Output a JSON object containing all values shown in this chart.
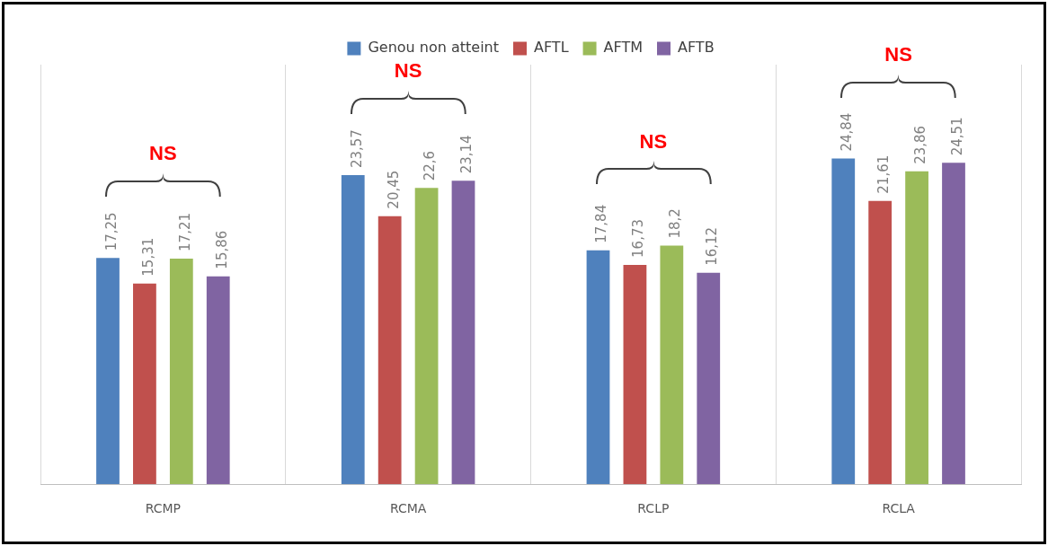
{
  "chart_data": {
    "type": "bar",
    "categories": [
      "RCMP",
      "RCMA",
      "RCLP",
      "RCLA"
    ],
    "series": [
      {
        "name": "Genou non atteint",
        "color": "#4f81bd",
        "values": [
          17.25,
          23.57,
          17.84,
          24.84
        ],
        "value_labels": [
          "17,25",
          "23,57",
          "17,84",
          "24,84"
        ]
      },
      {
        "name": "AFTL",
        "color": "#c0504d",
        "values": [
          15.31,
          20.45,
          16.73,
          21.61
        ],
        "value_labels": [
          "15,31",
          "20,45",
          "16,73",
          "21,61"
        ]
      },
      {
        "name": "AFTM",
        "color": "#9bbb59",
        "values": [
          17.21,
          22.6,
          18.2,
          23.86
        ],
        "value_labels": [
          "17,21",
          "22,6",
          "18,2",
          "23,86"
        ]
      },
      {
        "name": "AFTB",
        "color": "#8064a2",
        "values": [
          15.86,
          23.14,
          16.12,
          24.51
        ],
        "value_labels": [
          "15,86",
          "23,14",
          "16,12",
          "24,51"
        ]
      }
    ],
    "ylim": [
      0,
      32
    ],
    "tick_labels": "x",
    "grid": "x",
    "legend": "top",
    "annotations": [
      "NS",
      "NS",
      "NS",
      "NS"
    ]
  }
}
